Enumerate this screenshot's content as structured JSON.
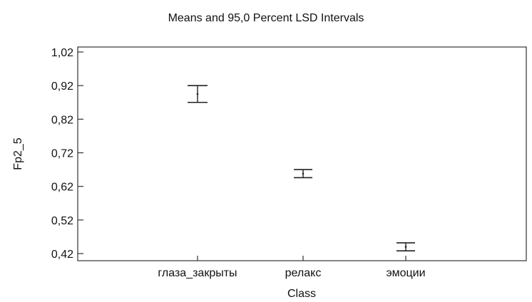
{
  "chart_data": {
    "type": "errorbar",
    "title": "Means and 95,0 Percent LSD Intervals",
    "xlabel": "Class",
    "ylabel": "Fp2_5",
    "ylim": [
      0.42,
      1.02
    ],
    "yticks": [
      "1,02",
      "0,92",
      "0,82",
      "0,72",
      "0,62",
      "0,52",
      "0,42"
    ],
    "ytick_values": [
      1.02,
      0.92,
      0.82,
      0.72,
      0.62,
      0.52,
      0.42
    ],
    "categories": [
      "глаза_закрыты",
      "релакс",
      "эмоции"
    ],
    "means": [
      0.895,
      0.658,
      0.44
    ],
    "lower": [
      0.87,
      0.646,
      0.428
    ],
    "upper": [
      0.92,
      0.67,
      0.452
    ],
    "grid": false,
    "legend": "none"
  }
}
